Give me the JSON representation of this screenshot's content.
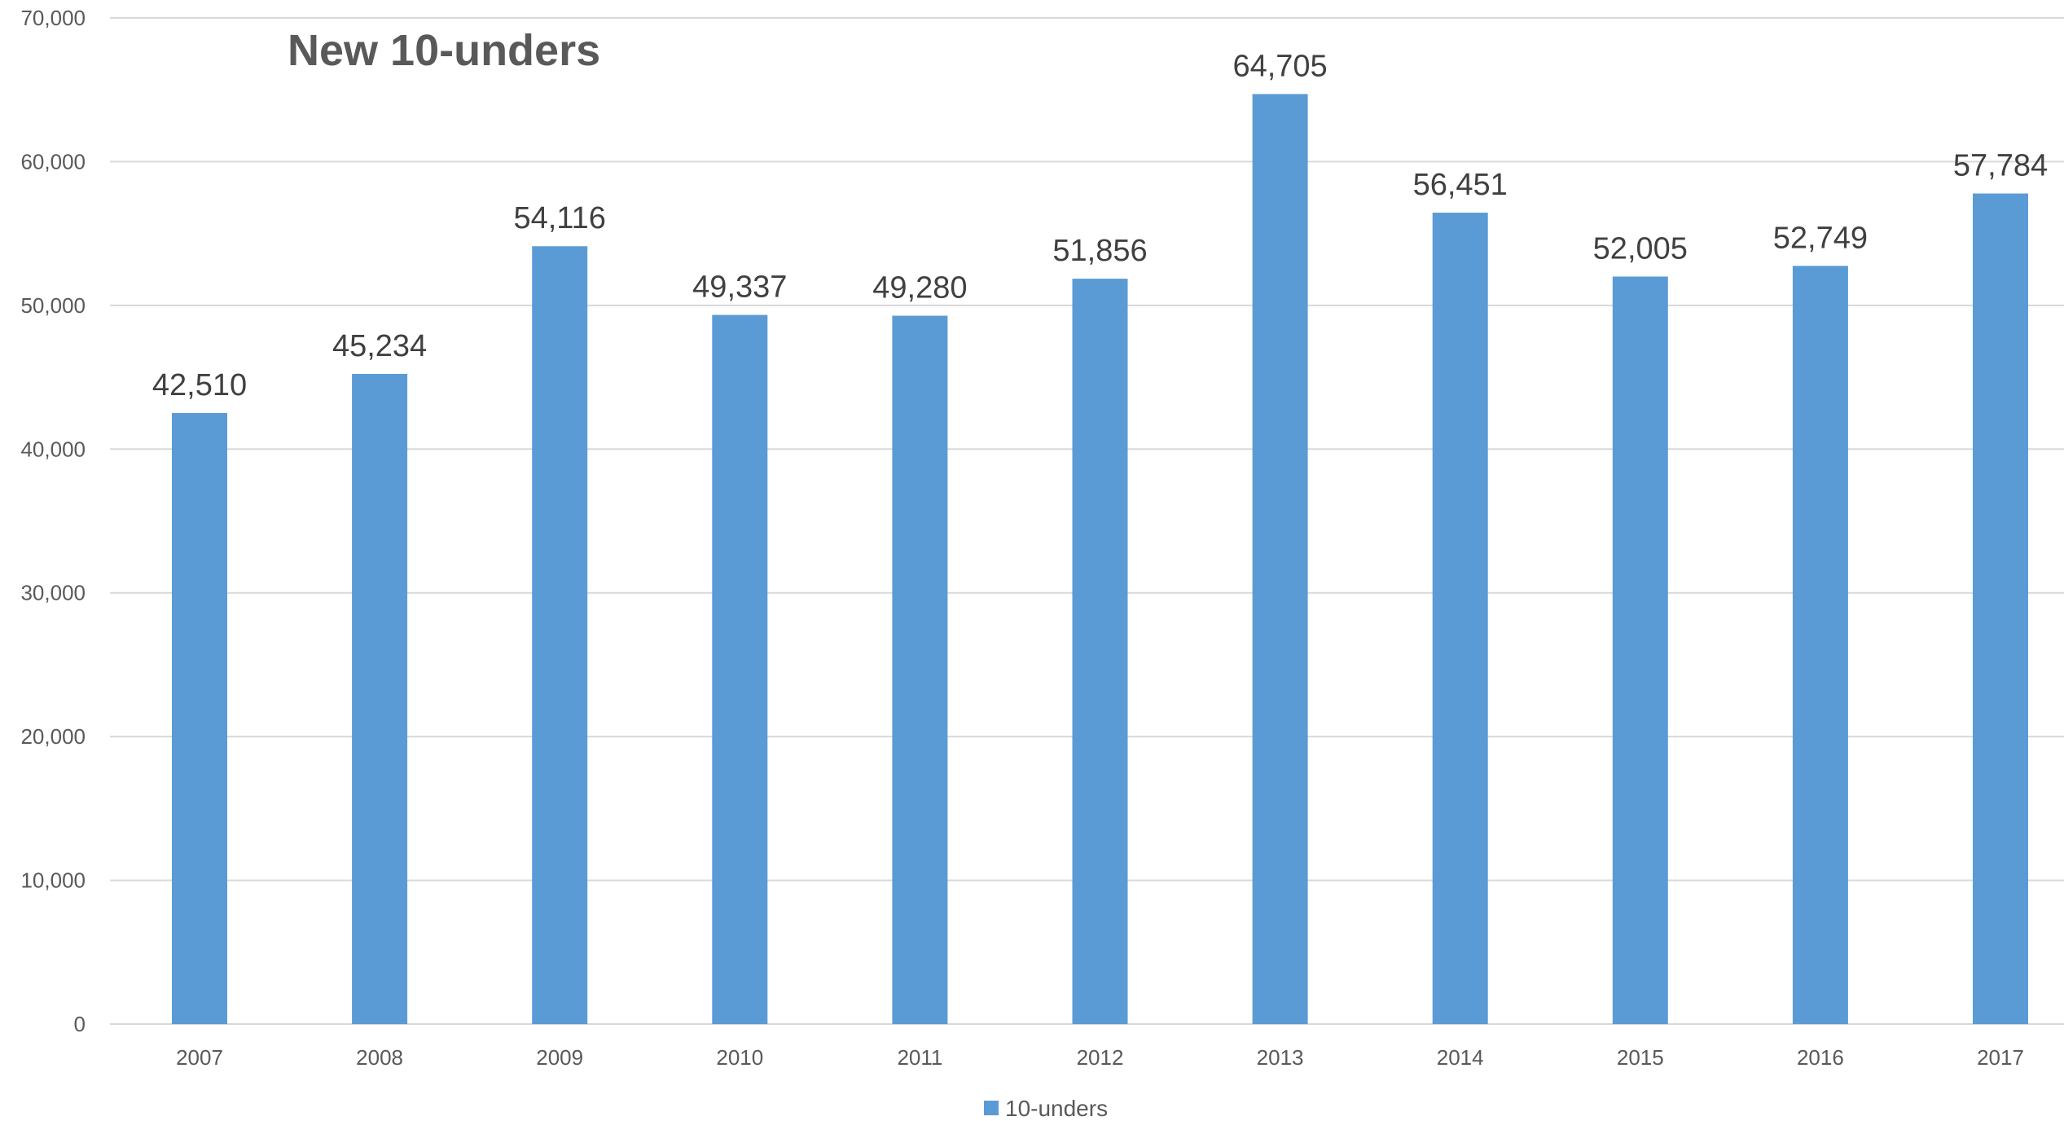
{
  "chart_data": {
    "type": "bar",
    "title": "New 10-unders",
    "xlabel": "",
    "ylabel": "",
    "categories": [
      "2007",
      "2008",
      "2009",
      "2010",
      "2011",
      "2012",
      "2013",
      "2014",
      "2015",
      "2016",
      "2017"
    ],
    "series": [
      {
        "name": "10-unders",
        "values": [
          42510,
          45234,
          54116,
          49337,
          49280,
          51856,
          64705,
          56451,
          52005,
          52749,
          57784
        ],
        "labels": [
          "42,510",
          "45,234",
          "54,116",
          "49,337",
          "49,280",
          "51,856",
          "64,705",
          "56,451",
          "52,005",
          "52,749",
          "57,784"
        ],
        "color": "#5b9bd5"
      }
    ],
    "ylim": [
      0,
      70000
    ],
    "yticks": [
      0,
      10000,
      20000,
      30000,
      40000,
      50000,
      60000,
      70000
    ],
    "ytick_labels": [
      "0",
      "10,000",
      "20,000",
      "30,000",
      "40,000",
      "50,000",
      "60,000",
      "70,000"
    ],
    "grid": true,
    "legend_position": "bottom-center"
  }
}
